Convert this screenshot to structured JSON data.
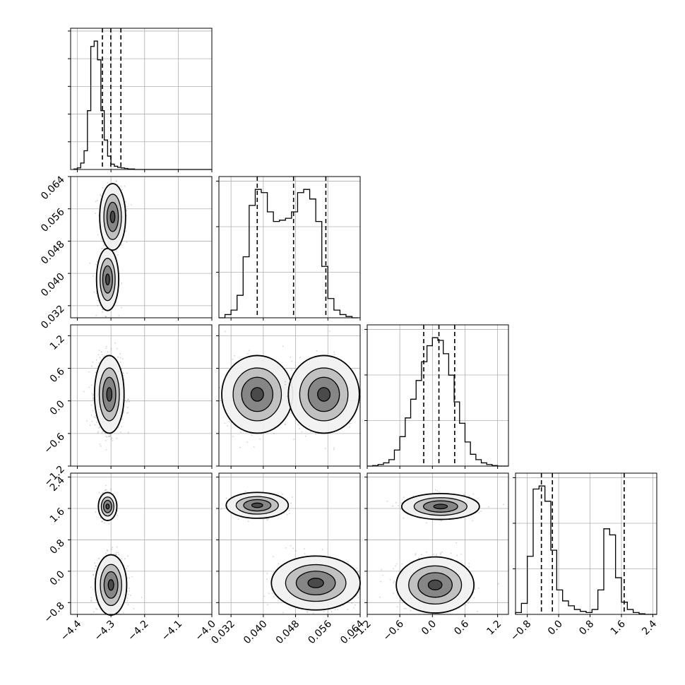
{
  "chart_data": {
    "type": "corner",
    "title": "",
    "xlabel": "",
    "ylabel": "",
    "colors": {
      "line": "#000000",
      "grid": "#b0b0b0",
      "scatter": "#000000"
    },
    "parameters": [
      {
        "xlim": [
          -4.42,
          -4.0
        ],
        "ticks": [
          -4.4,
          -4.3,
          -4.2,
          -4.1,
          -4.0
        ],
        "tick_labels": [
          "−4.4",
          "−4.3",
          "−4.2",
          "−4.1",
          "−4.0"
        ],
        "quantiles": [
          -4.3255,
          -4.3005,
          -4.2705
        ]
      },
      {
        "xlim": [
          0.029,
          0.064
        ],
        "ticks": [
          0.032,
          0.04,
          0.048,
          0.056,
          0.064
        ],
        "tick_labels": [
          "0.032",
          "0.040",
          "0.048",
          "0.056",
          "0.064"
        ],
        "quantiles": [
          0.0385,
          0.0475,
          0.0555
        ]
      },
      {
        "xlim": [
          -1.2,
          1.4
        ],
        "ticks": [
          -1.2,
          -0.6,
          0.0,
          0.6,
          1.2
        ],
        "tick_labels": [
          "−1.2",
          "−0.6",
          "0.0",
          "0.6",
          "1.2"
        ],
        "quantiles": [
          -0.16,
          0.12,
          0.41
        ]
      },
      {
        "xlim": [
          -1.1,
          2.5
        ],
        "ticks": [
          -0.8,
          0.0,
          0.8,
          1.6,
          2.4
        ],
        "tick_labels": [
          "−0.8",
          "0.0",
          "0.8",
          "1.6",
          "2.4"
        ],
        "quantiles": [
          -0.44,
          -0.16,
          1.67
        ]
      }
    ],
    "histograms": [
      {
        "bins": [
          -4.41,
          -4.4,
          -4.39,
          -4.38,
          -4.37,
          -4.36,
          -4.35,
          -4.34,
          -4.33,
          -4.32,
          -4.31,
          -4.3,
          -4.29,
          -4.28,
          -4.27,
          -4.26,
          -4.25,
          -4.24,
          -4.23,
          -4.22,
          -4.21,
          -4.2,
          -4.19,
          -4.18,
          -4.17,
          -4.16,
          -4.15,
          -4.14,
          -4.13,
          -4.12,
          -4.11,
          -4.1,
          -4.09,
          -4.08,
          -4.07,
          -4.06,
          -4.05,
          -4.04,
          -4.03,
          -4.02,
          -4.01,
          -4.0
        ],
        "counts": [
          1,
          3,
          12,
          35,
          110,
          230,
          240,
          205,
          110,
          55,
          25,
          10,
          6,
          4,
          3,
          2,
          1,
          1,
          0,
          0,
          0,
          0,
          0,
          0,
          0,
          0,
          0,
          0,
          0,
          0,
          0,
          0,
          0,
          0,
          0,
          0,
          0,
          0,
          0,
          0,
          0
        ],
        "ytick_count": 5
      },
      {
        "bins": [
          0.029,
          0.0305,
          0.032,
          0.0335,
          0.035,
          0.0365,
          0.038,
          0.0395,
          0.041,
          0.0425,
          0.044,
          0.0455,
          0.047,
          0.0485,
          0.05,
          0.0515,
          0.053,
          0.0545,
          0.056,
          0.0575,
          0.059,
          0.0605,
          0.062,
          0.0635
        ],
        "counts": [
          0,
          5,
          12,
          35,
          95,
          175,
          200,
          195,
          165,
          150,
          152,
          155,
          165,
          195,
          200,
          185,
          150,
          80,
          30,
          12,
          5,
          2,
          0
        ],
        "ytick_count": 3
      },
      {
        "bins": [
          -1.2,
          -1.1,
          -1.0,
          -0.9,
          -0.8,
          -0.7,
          -0.6,
          -0.5,
          -0.4,
          -0.3,
          -0.2,
          -0.1,
          0.0,
          0.1,
          0.2,
          0.3,
          0.4,
          0.5,
          0.6,
          0.7,
          0.8,
          0.9,
          1.0,
          1.1,
          1.2,
          1.3,
          1.4
        ],
        "counts": [
          0,
          1,
          3,
          6,
          12,
          30,
          55,
          90,
          125,
          160,
          195,
          225,
          240,
          235,
          210,
          170,
          120,
          80,
          45,
          22,
          12,
          6,
          3,
          1,
          0,
          0
        ],
        "ytick_count": 3
      },
      {
        "bins": [
          -1.1,
          -0.95,
          -0.8,
          -0.65,
          -0.5,
          -0.35,
          -0.2,
          -0.05,
          0.1,
          0.25,
          0.4,
          0.55,
          0.7,
          0.85,
          1.0,
          1.15,
          1.3,
          1.45,
          1.6,
          1.75,
          1.9,
          2.05,
          2.2,
          2.35,
          2.5
        ],
        "counts": [
          3,
          18,
          95,
          205,
          210,
          185,
          105,
          40,
          22,
          14,
          8,
          5,
          3,
          8,
          40,
          140,
          130,
          60,
          20,
          8,
          3,
          1,
          0,
          0
        ],
        "ytick_count": 3
      }
    ],
    "panels2d": [
      {
        "pair": [
          1,
          0
        ],
        "modes": [
          {
            "cx": -4.31,
            "cy": 0.0385,
            "sx": 0.012,
            "sy": 0.0028,
            "w": 0.5
          },
          {
            "cx": -4.295,
            "cy": 0.054,
            "sx": 0.014,
            "sy": 0.003,
            "w": 0.5
          }
        ]
      },
      {
        "pair": [
          2,
          0
        ],
        "modes": [
          {
            "cx": -4.305,
            "cy": 0.12,
            "sx": 0.016,
            "sy": 0.26,
            "w": 1.0
          }
        ]
      },
      {
        "pair": [
          2,
          1
        ],
        "modes": [
          {
            "cx": 0.0385,
            "cy": 0.12,
            "sx": 0.0032,
            "sy": 0.26,
            "w": 0.5
          },
          {
            "cx": 0.055,
            "cy": 0.12,
            "sx": 0.0032,
            "sy": 0.26,
            "w": 0.5
          }
        ]
      },
      {
        "pair": [
          3,
          0
        ],
        "modes": [
          {
            "cx": -4.31,
            "cy": 1.65,
            "sx": 0.01,
            "sy": 0.13,
            "w": 0.3
          },
          {
            "cx": -4.3,
            "cy": -0.35,
            "sx": 0.017,
            "sy": 0.28,
            "w": 0.7
          }
        ]
      },
      {
        "pair": [
          3,
          1
        ],
        "modes": [
          {
            "cx": 0.0385,
            "cy": 1.68,
            "sx": 0.0028,
            "sy": 0.12,
            "w": 0.3
          },
          {
            "cx": 0.053,
            "cy": -0.3,
            "sx": 0.004,
            "sy": 0.25,
            "w": 0.7
          }
        ]
      },
      {
        "pair": [
          3,
          2
        ],
        "modes": [
          {
            "cx": 0.15,
            "cy": 1.65,
            "sx": 0.26,
            "sy": 0.12,
            "w": 0.3
          },
          {
            "cx": 0.05,
            "cy": -0.35,
            "sx": 0.26,
            "sy": 0.26,
            "w": 0.7
          }
        ]
      }
    ]
  }
}
